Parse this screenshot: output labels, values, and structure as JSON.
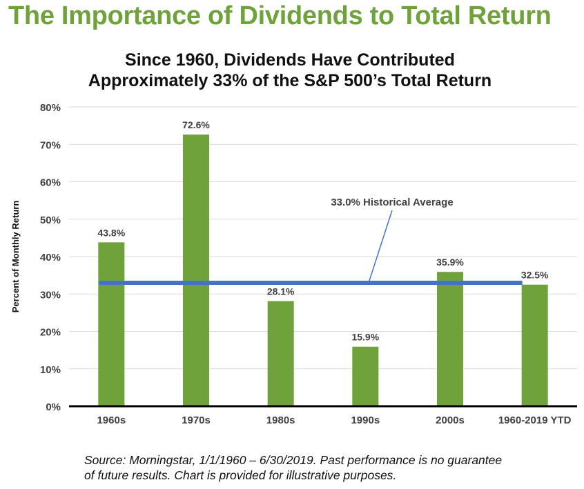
{
  "heading": "The Importance of Dividends to Total Return",
  "chart_data": {
    "type": "bar",
    "title_lines": [
      "Since 1960, Dividends Have Contributed",
      "Approximately 33% of the S&P 500’s Total Return"
    ],
    "xlabel": "",
    "ylabel": "Percent of Monthly Return",
    "ylim": [
      0,
      80
    ],
    "yticks": [
      0,
      10,
      20,
      30,
      40,
      50,
      60,
      70,
      80
    ],
    "ytick_format": "percent",
    "grid": true,
    "categories": [
      "1960s",
      "1970s",
      "1980s",
      "1990s",
      "2000s",
      "1960-2019 YTD"
    ],
    "values": [
      43.8,
      72.6,
      28.1,
      15.9,
      35.9,
      32.5
    ],
    "data_labels": [
      "43.8%",
      "72.6%",
      "28.1%",
      "15.9%",
      "35.9%",
      "32.5%"
    ],
    "bar_color": "#6fa23b",
    "reference_line": {
      "value": 33.0,
      "label": "33.0% Historical Average",
      "color": "#4472c4"
    }
  },
  "source_lines": [
    "Source: Morningstar, 1/1/1960 – 6/30/2019. Past performance is no guarantee",
    "of future results. Chart is provided for illustrative purposes."
  ]
}
